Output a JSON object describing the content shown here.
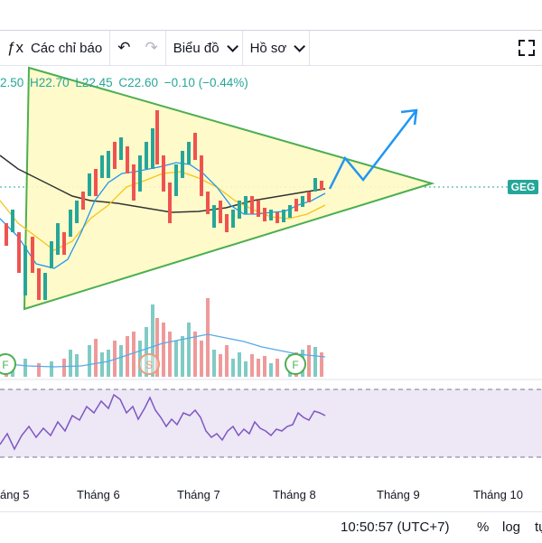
{
  "toolbar": {
    "indicators_label": "Các chỉ báo",
    "undo_icon": "undo-icon",
    "redo_icon": "redo-icon",
    "chart_type_label": "Biểu đồ",
    "profile_label": "Hồ sơ",
    "fullscreen_icon": "fullscreen-icon"
  },
  "legend": {
    "open": "2.50",
    "high": "H22.70",
    "low": "L22.45",
    "close": "C22.60",
    "change": "−0.10 (−0.44%)"
  },
  "symbol_label": "GEG",
  "colors": {
    "up": "#26a69a",
    "down": "#ef5350",
    "triangle_fill": "#fff9c4",
    "triangle_stroke": "#4caf50",
    "forecast_arrow": "#2196f3",
    "rsi_line": "#7e57c2",
    "rsi_band": "#ede7f6"
  },
  "markers": [
    "F",
    "S",
    "F"
  ],
  "xaxis": [
    "áng 5",
    "Tháng 6",
    "Tháng 7",
    "Tháng 8",
    "Tháng 9",
    "Tháng 10"
  ],
  "status": {
    "time": "10:50:57 (UTC+7)",
    "percent": "%",
    "log": "log",
    "auto": "tự"
  }
}
